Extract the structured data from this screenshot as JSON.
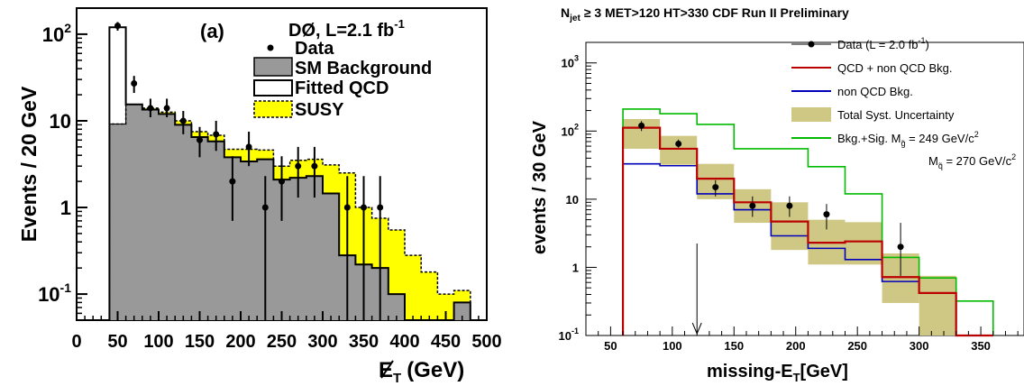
{
  "chart_data": [
    {
      "type": "bar",
      "panel_label": "(a)",
      "experiment": "DØ, L=2.1 fb",
      "experiment_sup": "-1",
      "xlabel": "E",
      "xlabel_sub": "T",
      "xlabel_unit": "(GeV)",
      "ylabel": "Events / 20 GeV",
      "y_scale": "log",
      "xlim": [
        0,
        500
      ],
      "ylim": [
        0.05,
        200
      ],
      "x_ticks": [
        "0",
        "50",
        "100",
        "150",
        "200",
        "250",
        "300",
        "350",
        "400",
        "450",
        "500"
      ],
      "y_ticks": [
        {
          "base": "10",
          "exp": "-1"
        },
        {
          "base": "1",
          "exp": ""
        },
        {
          "base": "10",
          "exp": ""
        },
        {
          "base": "10",
          "exp": "2"
        }
      ],
      "legend": {
        "placement": "top-right",
        "entries": [
          {
            "label": "Data",
            "style": "marker"
          },
          {
            "label": "SM Background",
            "style": "fill-gray"
          },
          {
            "label": "Fitted QCD",
            "style": "outline"
          },
          {
            "label": "SUSY",
            "style": "fill-yellow-dashed"
          }
        ]
      },
      "colors": {
        "sm": "#999999",
        "susy": "#ffff00",
        "qcd": "#000000",
        "data": "#000000"
      },
      "bin_edges": [
        40,
        60,
        80,
        100,
        120,
        140,
        160,
        180,
        200,
        220,
        240,
        260,
        280,
        300,
        320,
        340,
        360,
        380,
        400,
        420,
        440,
        460,
        480,
        500
      ],
      "series": [
        {
          "name": "SM Background",
          "values": [
            9.2,
            15.5,
            13.5,
            12.0,
            9.0,
            6.5,
            5.8,
            3.8,
            3.4,
            3.6,
            2.1,
            2.2,
            2.3,
            1.45,
            0.28,
            0.22,
            0.2,
            0.1,
            0.04,
            0.04,
            0.04,
            0.08,
            0.04
          ]
        },
        {
          "name": "Fitted QCD",
          "values": [
            120,
            15.5,
            13.5,
            12.0,
            9.0,
            6.5,
            5.8,
            3.8,
            3.4,
            3.6,
            2.1,
            2.2,
            2.3,
            1.45,
            0.28,
            0.22,
            0.2,
            0.1,
            0.04,
            0.04,
            0.04,
            0.08,
            0.04
          ]
        },
        {
          "name": "SUSY",
          "values": [
            9.2,
            15.5,
            14.0,
            12.6,
            10.0,
            7.5,
            6.8,
            4.7,
            4.7,
            4.6,
            3.0,
            3.5,
            3.6,
            3.1,
            2.5,
            1.0,
            0.75,
            0.55,
            0.28,
            0.18,
            0.1,
            0.11,
            0.04
          ]
        }
      ],
      "data_points": [
        {
          "x": 50,
          "y": 125,
          "lo": 110,
          "hi": 138
        },
        {
          "x": 70,
          "y": 27,
          "lo": 21,
          "hi": 33
        },
        {
          "x": 90,
          "y": 14,
          "lo": 11,
          "hi": 18
        },
        {
          "x": 110,
          "y": 14,
          "lo": 11,
          "hi": 18
        },
        {
          "x": 130,
          "y": 10,
          "lo": 7,
          "hi": 13
        },
        {
          "x": 150,
          "y": 6,
          "lo": 3.8,
          "hi": 8.5
        },
        {
          "x": 170,
          "y": 7,
          "lo": 4.5,
          "hi": 10
        },
        {
          "x": 190,
          "y": 2,
          "lo": 0.7,
          "hi": 3.9
        },
        {
          "x": 210,
          "y": 5,
          "lo": 3,
          "hi": 7.5
        },
        {
          "x": 230,
          "y": 1,
          "lo": 0.05,
          "hi": 2.3
        },
        {
          "x": 250,
          "y": 2,
          "lo": 0.7,
          "hi": 3.9
        },
        {
          "x": 270,
          "y": 3,
          "lo": 1.3,
          "hi": 5
        },
        {
          "x": 290,
          "y": 3,
          "lo": 1.3,
          "hi": 5
        },
        {
          "x": 330,
          "y": 1,
          "lo": 0.05,
          "hi": 2.3
        },
        {
          "x": 350,
          "y": 1,
          "lo": 0.05,
          "hi": 2.3
        },
        {
          "x": 370,
          "y": 1,
          "lo": 0.05,
          "hi": 2.3
        }
      ]
    },
    {
      "type": "bar",
      "title": "N",
      "title_sub": "jet",
      "title_rest": "≥ 3   MET>120 HT>330 CDF Run II Preliminary",
      "xlabel": "missing-E",
      "xlabel_sub": "T",
      "xlabel_unit": "[GeV]",
      "ylabel": "events / 30 GeV",
      "y_scale": "log",
      "xlim": [
        30,
        385
      ],
      "ylim": [
        0.1,
        2000
      ],
      "x_ticks": [
        "50",
        "100",
        "150",
        "200",
        "250",
        "300",
        "350"
      ],
      "y_ticks": [
        {
          "base": "10",
          "exp": "-1"
        },
        {
          "base": "1",
          "exp": ""
        },
        {
          "base": "10",
          "exp": ""
        },
        {
          "base": "10",
          "exp": "2"
        },
        {
          "base": "10",
          "exp": "3"
        }
      ],
      "cut_arrow_x": 120,
      "legend": {
        "placement": "top-right",
        "entries": [
          {
            "label": "Data (L = 2.0 fb",
            "sup": "-1",
            "tail": ")",
            "style": "marker"
          },
          {
            "label": "QCD + non QCD Bkg.",
            "style": "line-red"
          },
          {
            "label": "non QCD Bkg.",
            "style": "line-blue"
          },
          {
            "label": "Total Syst. Uncertainty",
            "style": "fill-olive"
          },
          {
            "label": "Bkg.+Sig. M",
            "sub": "g̃",
            "tail": " = 249 GeV/c",
            "sup": "2",
            "style": "line-green"
          },
          {
            "label": "M",
            "sub": "q̃",
            "tail": " = 270 GeV/c",
            "sup": "2",
            "style": "none"
          }
        ]
      },
      "colors": {
        "qcd_total": "#bb0000",
        "non_qcd": "#0000bb",
        "syst": "#cfc884",
        "signal": "#00bb00",
        "data": "#000000"
      },
      "bin_edges": [
        60,
        90,
        120,
        150,
        180,
        210,
        240,
        270,
        300,
        330,
        360
      ],
      "series": [
        {
          "name": "QCD + non QCD Bkg.",
          "values": [
            112,
            55,
            20,
            9,
            4.7,
            2.3,
            2.4,
            0.72,
            0.42,
            0.0
          ]
        },
        {
          "name": "non QCD Bkg.",
          "values": [
            33,
            31,
            12,
            7,
            2.9,
            1.9,
            1.3,
            0.62,
            0.42,
            0.0
          ]
        },
        {
          "name": "Bkg.+Sig.",
          "values": [
            210,
            180,
            125,
            55,
            55,
            30,
            12,
            1.4,
            0.7,
            0.32
          ]
        }
      ],
      "syst_band": [
        {
          "lo": 55,
          "hi": 150
        },
        {
          "lo": 32,
          "hi": 85
        },
        {
          "lo": 10,
          "hi": 33
        },
        {
          "lo": 4.5,
          "hi": 14
        },
        {
          "lo": 1.8,
          "hi": 9
        },
        {
          "lo": 1.1,
          "hi": 5
        },
        {
          "lo": 1.1,
          "hi": 4.6
        },
        {
          "lo": 0.3,
          "hi": 1.6
        },
        {
          "lo": 0.1,
          "hi": 0.75
        }
      ],
      "data_points": [
        {
          "x": 75,
          "y": 120,
          "lo": 100,
          "hi": 140
        },
        {
          "x": 105,
          "y": 65,
          "lo": 57,
          "hi": 75
        },
        {
          "x": 135,
          "y": 15,
          "lo": 11,
          "hi": 19
        },
        {
          "x": 165,
          "y": 8,
          "lo": 5.5,
          "hi": 11
        },
        {
          "x": 195,
          "y": 8,
          "lo": 5.5,
          "hi": 11
        },
        {
          "x": 225,
          "y": 6,
          "lo": 3.6,
          "hi": 8.5
        },
        {
          "x": 285,
          "y": 2,
          "lo": 0.75,
          "hi": 4.5
        }
      ]
    }
  ]
}
